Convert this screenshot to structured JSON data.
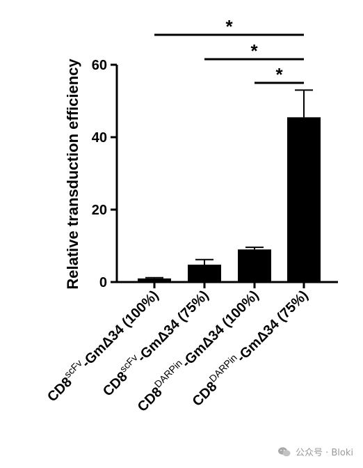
{
  "chart_data": {
    "type": "bar",
    "ylabel": "Relative transduction efficiency",
    "ylim": [
      0,
      60
    ],
    "yticks": [
      "0",
      "20",
      "40",
      "60"
    ],
    "categories": [
      {
        "base": "CD8",
        "sup": "scFv",
        "rest": "-GmΔ34 (100%)"
      },
      {
        "base": "CD8",
        "sup": "scFv",
        "rest": "-GmΔ34 (75%)"
      },
      {
        "base": "CD8",
        "sup": "DARPin",
        "rest": "-GmΔ34 (100%)"
      },
      {
        "base": "CD8",
        "sup": "DARPin",
        "rest": "-GmΔ34 (75%)"
      }
    ],
    "values": [
      1,
      4.8,
      9,
      45.5
    ],
    "errors": [
      0.2,
      1.4,
      0.6,
      7.5
    ],
    "bar_color": "#000000",
    "significance": [
      {
        "from": 0,
        "to": 3,
        "label": "*"
      },
      {
        "from": 1,
        "to": 3,
        "label": "*"
      },
      {
        "from": 2,
        "to": 3,
        "label": "*"
      }
    ]
  },
  "watermark": {
    "text": "公众号 · Bloki",
    "icon": "wechat-icon"
  }
}
